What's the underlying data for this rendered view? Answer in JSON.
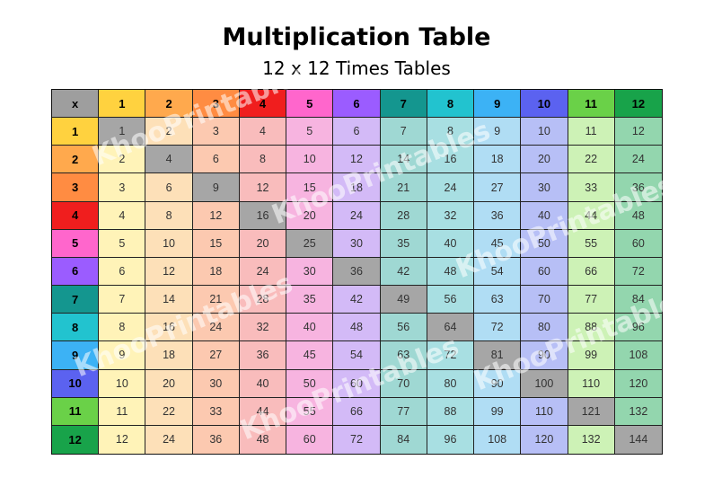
{
  "title": "Multiplication Table",
  "subtitle": "12 x 12 Times Tables",
  "corner_label": "x",
  "size": 12,
  "watermark": "KhooPrintables",
  "colors": {
    "header": [
      "#9e9e9e",
      "#ffd23f",
      "#ffa94d",
      "#ff8c42",
      "#f01e1e",
      "#ff66cc",
      "#9b5cff",
      "#14968f",
      "#22c3cf",
      "#3cb2f5",
      "#5b62f0",
      "#6ad148",
      "#18a34a"
    ],
    "light": [
      "#fff3b8",
      "#fde0b8",
      "#fcc9b0",
      "#f9bcbc",
      "#f7b4e0",
      "#d3baf7",
      "#9fd8d3",
      "#a8dfe2",
      "#b0ddf4",
      "#b7bff6",
      "#cdf2b6",
      "#93d6ae"
    ],
    "diagonal": "#a6a6a6"
  }
}
